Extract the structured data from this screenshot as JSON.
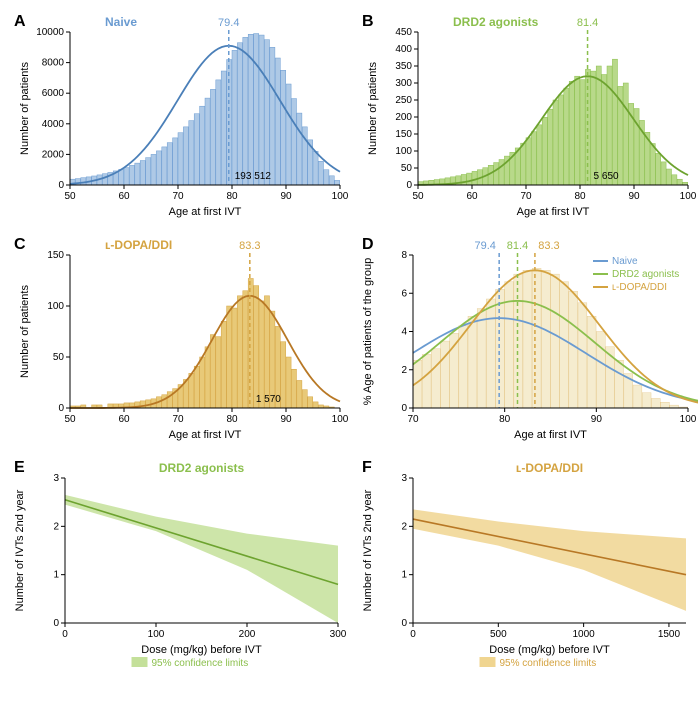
{
  "colors": {
    "naive": "#6a9bd1",
    "naive_fill": "#aec9e6",
    "naive_stroke": "#4a7fb8",
    "drd2": "#8bbf4d",
    "drd2_fill": "#b8d98a",
    "drd2_stroke": "#6da32f",
    "ldopa": "#d4a340",
    "ldopa_fill": "#e8c978",
    "ldopa_stroke": "#b87825",
    "drd2_ci": "#c4e09a",
    "ldopa_ci": "#f0d590"
  },
  "panels": {
    "A": {
      "letter": "A",
      "title": "Naive",
      "title_color": "#6a9bd1",
      "mean": "79.4",
      "mean_x": 79.4,
      "count": "193 512",
      "xlabel": "Age at first IVT",
      "ylabel": "Number of patients",
      "xlim": [
        50,
        100
      ],
      "ylim": [
        0,
        10000
      ],
      "xticks": [
        50,
        60,
        70,
        80,
        90,
        100
      ],
      "yticks": [
        0,
        2000,
        4000,
        6000,
        8000,
        10000
      ],
      "bar_fill": "#aec9e6",
      "bar_stroke": "#6a9bd1",
      "curve_color": "#4a7fb8",
      "dash_color": "#6a9bd1",
      "bin_width": 1,
      "curve_mu": 79.4,
      "curve_sigma": 9.5,
      "curve_peak": 9100,
      "bars": [
        380,
        420,
        480,
        530,
        590,
        660,
        740,
        820,
        920,
        1020,
        1140,
        1280,
        1430,
        1600,
        1790,
        2000,
        2230,
        2490,
        2770,
        3080,
        3420,
        3800,
        4210,
        4660,
        5150,
        5680,
        6250,
        6870,
        7450,
        8200,
        8800,
        9300,
        9650,
        9850,
        9900,
        9800,
        9500,
        9000,
        8300,
        7500,
        6600,
        5650,
        4700,
        3800,
        2950,
        2200,
        1550,
        1000,
        600,
        300
      ]
    },
    "B": {
      "letter": "B",
      "title": "DRD2 agonists",
      "title_color": "#8bbf4d",
      "mean": "81.4",
      "mean_x": 81.4,
      "count": "5 650",
      "xlabel": "Age at first IVT",
      "ylabel": "Number of patients",
      "xlim": [
        50,
        100
      ],
      "ylim": [
        0,
        450
      ],
      "xticks": [
        50,
        60,
        70,
        80,
        90,
        100
      ],
      "yticks": [
        0,
        50,
        100,
        150,
        200,
        250,
        300,
        350,
        400,
        450
      ],
      "bar_fill": "#b8d98a",
      "bar_stroke": "#8bbf4d",
      "curve_color": "#6da32f",
      "dash_color": "#8bbf4d",
      "bin_width": 1,
      "curve_mu": 81.4,
      "curve_sigma": 8.5,
      "curve_peak": 320,
      "bars": [
        10,
        12,
        14,
        16,
        18,
        21,
        24,
        27,
        31,
        35,
        40,
        45,
        51,
        58,
        66,
        75,
        85,
        96,
        109,
        123,
        139,
        157,
        177,
        199,
        223,
        250,
        265,
        285,
        305,
        320,
        310,
        340,
        335,
        350,
        325,
        350,
        370,
        290,
        300,
        240,
        225,
        190,
        155,
        122,
        93,
        68,
        47,
        30,
        17,
        8
      ]
    },
    "C": {
      "letter": "C",
      "title": "ʟ-DOPA/DDI",
      "title_color": "#d4a340",
      "mean": "83.3",
      "mean_x": 83.3,
      "count": "1 570",
      "xlabel": "Age at first IVT",
      "ylabel": "Number of patients",
      "xlim": [
        50,
        100
      ],
      "ylim": [
        0,
        150
      ],
      "xticks": [
        50,
        60,
        70,
        80,
        90,
        100
      ],
      "yticks": [
        0,
        50,
        100,
        150
      ],
      "bar_fill": "#e8c978",
      "bar_stroke": "#d4a340",
      "curve_color": "#b87825",
      "dash_color": "#d4a340",
      "bin_width": 1,
      "curve_mu": 83.3,
      "curve_sigma": 7.0,
      "curve_peak": 110,
      "bars": [
        2,
        2,
        3,
        0,
        3,
        3,
        0,
        4,
        4,
        4,
        5,
        5,
        6,
        7,
        8,
        9,
        11,
        13,
        16,
        19,
        23,
        28,
        34,
        41,
        50,
        60,
        72,
        70,
        85,
        100,
        98,
        110,
        115,
        127,
        120,
        105,
        110,
        95,
        80,
        65,
        50,
        38,
        27,
        18,
        11,
        6,
        3,
        2,
        1,
        0
      ]
    },
    "D": {
      "letter": "D",
      "xlabel": "Age at first IVT",
      "ylabel": "% Age of patients of the group",
      "xlim": [
        70,
        100
      ],
      "ylim": [
        0,
        8
      ],
      "xticks": [
        70,
        80,
        90,
        100
      ],
      "yticks": [
        0,
        2,
        4,
        6,
        8
      ],
      "legend": [
        {
          "label": "Naive",
          "color": "#6a9bd1"
        },
        {
          "label": "DRD2 agonists",
          "color": "#8bbf4d"
        },
        {
          "label": "ʟ-DOPA/DDI",
          "color": "#d4a340"
        }
      ],
      "means": [
        {
          "v": "79.4",
          "x": 79.4,
          "color": "#6a9bd1"
        },
        {
          "v": "81.4",
          "x": 81.4,
          "color": "#8bbf4d"
        },
        {
          "v": "83.3",
          "x": 83.3,
          "color": "#d4a340"
        }
      ],
      "curves": [
        {
          "mu": 79.4,
          "sigma": 9.5,
          "peak": 4.7,
          "color": "#6a9bd1"
        },
        {
          "mu": 81.4,
          "sigma": 8.5,
          "peak": 5.6,
          "color": "#8bbf4d"
        },
        {
          "mu": 83.3,
          "sigma": 7.0,
          "peak": 7.2,
          "color": "#d4a340"
        }
      ],
      "hist": {
        "fill": "#f0e0b0",
        "bars": [
          2.5,
          2.8,
          3.1,
          3.5,
          3.9,
          4.3,
          4.8,
          5.2,
          5.7,
          6.2,
          6.6,
          7.0,
          7.2,
          7.3,
          7.2,
          7.0,
          6.6,
          6.1,
          5.5,
          4.8,
          4.0,
          3.2,
          2.5,
          1.8,
          1.2,
          0.8,
          0.5,
          0.3,
          0.15,
          0.05
        ]
      }
    },
    "E": {
      "letter": "E",
      "title": "DRD2 agonists",
      "title_color": "#8bbf4d",
      "xlabel": "Dose (mg/kg) before IVT",
      "ylabel": "Number of IVTs 2nd year",
      "xlim": [
        0,
        300
      ],
      "ylim": [
        0,
        3
      ],
      "xticks": [
        0,
        100,
        200,
        300
      ],
      "yticks": [
        0,
        1,
        2,
        3
      ],
      "line_color": "#6da32f",
      "ci_fill": "#c4e09a",
      "ci_label": "95% confidence limits",
      "line": {
        "x0": 0,
        "y0": 2.55,
        "x1": 300,
        "y1": 0.8
      },
      "ci_upper": [
        [
          0,
          2.65
        ],
        [
          100,
          2.2
        ],
        [
          200,
          1.85
        ],
        [
          300,
          1.6
        ]
      ],
      "ci_lower": [
        [
          0,
          2.45
        ],
        [
          100,
          1.9
        ],
        [
          200,
          1.1
        ],
        [
          300,
          0.0
        ]
      ]
    },
    "F": {
      "letter": "F",
      "title": "ʟ-DOPA/DDI",
      "title_color": "#d4a340",
      "xlabel": "Dose (mg/kg) before IVT",
      "ylabel": "Number of IVTs 2nd year",
      "xlim": [
        0,
        1600
      ],
      "ylim": [
        0,
        3
      ],
      "xticks": [
        0,
        500,
        1000,
        1500
      ],
      "yticks": [
        0,
        1,
        2,
        3
      ],
      "line_color": "#b87825",
      "ci_fill": "#f0d590",
      "ci_label": "95% confidence limits",
      "line": {
        "x0": 0,
        "y0": 2.15,
        "x1": 1600,
        "y1": 1.0
      },
      "ci_upper": [
        [
          0,
          2.35
        ],
        [
          500,
          2.1
        ],
        [
          1000,
          1.9
        ],
        [
          1600,
          1.75
        ]
      ],
      "ci_lower": [
        [
          0,
          1.95
        ],
        [
          500,
          1.6
        ],
        [
          1000,
          1.1
        ],
        [
          1600,
          0.25
        ]
      ]
    }
  }
}
